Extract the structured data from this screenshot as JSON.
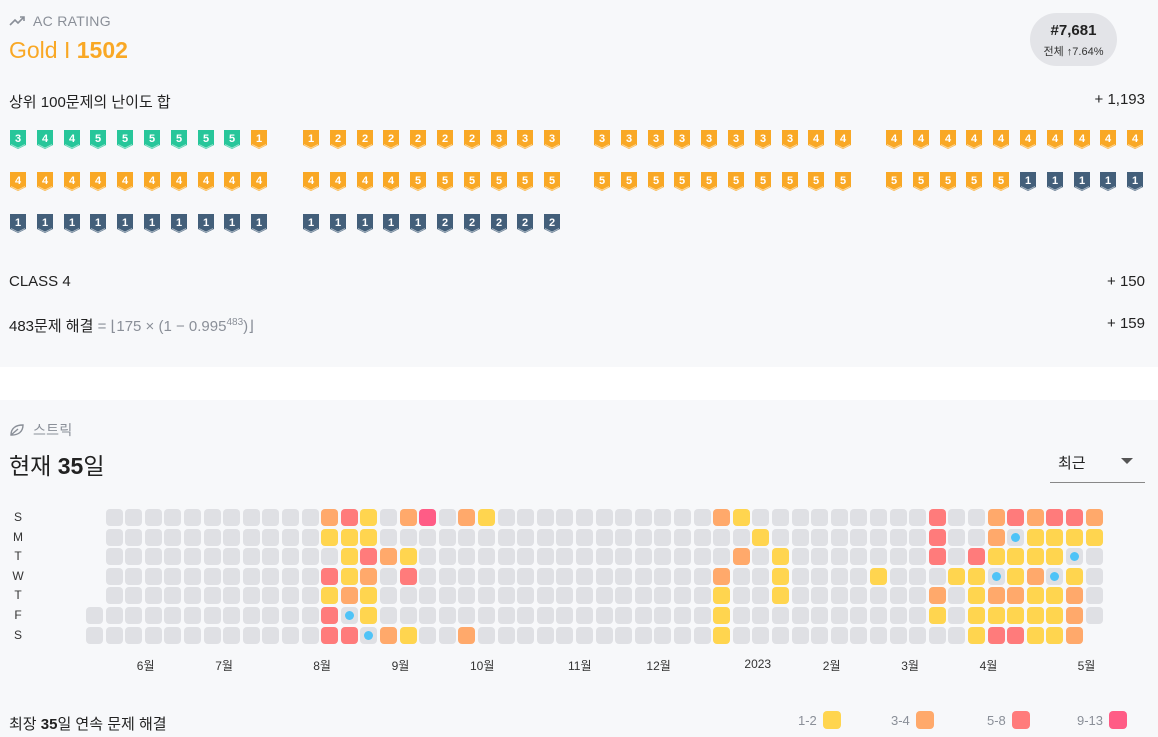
{
  "ac_rating": {
    "header": "AC RATING",
    "tier_label": "Gold I",
    "rating": "1502",
    "rank": "#7,681",
    "rank_sub": "전체 ↑7.64%",
    "top100_label": "상위 100문제의 난이도 합",
    "top100_value": "+ 1,193",
    "class_label": "CLASS 4",
    "class_value": "+ 150",
    "solved_label": "483문제 해결",
    "solved_formula": "= ⌊175 × (1 − 0.995",
    "solved_exp": "483",
    "solved_close": ")⌋",
    "solved_value": "+ 159",
    "colors": {
      "gold": "#f9a825",
      "silver": "#435f7a",
      "emerald": "#27c69a"
    },
    "top100_tiers": [
      [
        "e3",
        "e4",
        "e4",
        "e5",
        "e5",
        "e5",
        "e5",
        "e5",
        "e5",
        "g1"
      ],
      [
        "g1",
        "g2",
        "g2",
        "g2",
        "g2",
        "g2",
        "g2",
        "g3",
        "g3",
        "g3"
      ],
      [
        "g3",
        "g3",
        "g3",
        "g3",
        "g3",
        "g3",
        "g3",
        "g3",
        "g4",
        "g4"
      ],
      [
        "g4",
        "g4",
        "g4",
        "g4",
        "g4",
        "g4",
        "g4",
        "g4",
        "g4",
        "g4"
      ],
      [
        "g4",
        "g4",
        "g4",
        "g4",
        "g4",
        "g4",
        "g4",
        "g4",
        "g4",
        "g4"
      ],
      [
        "g4",
        "g4",
        "g4",
        "g4",
        "g5",
        "g5",
        "g5",
        "g5",
        "g5",
        "g5"
      ],
      [
        "g5",
        "g5",
        "g5",
        "g5",
        "g5",
        "g5",
        "g5",
        "g5",
        "g5",
        "g5"
      ],
      [
        "g5",
        "g5",
        "g5",
        "g5",
        "g5",
        "s1",
        "s1",
        "s1",
        "s1",
        "s1"
      ],
      [
        "s1",
        "s1",
        "s1",
        "s1",
        "s1",
        "s1",
        "s1",
        "s1",
        "s1",
        "s1"
      ],
      [
        "s1",
        "s1",
        "s1",
        "s1",
        "s1",
        "s2",
        "s2",
        "s2",
        "s2",
        "s2"
      ]
    ]
  },
  "streak": {
    "header": "스트릭",
    "current_prefix": "현재 ",
    "current_value": "35",
    "current_suffix": "일",
    "dropdown_value": "최근",
    "days": [
      "S",
      "M",
      "T",
      "W",
      "T",
      "F",
      "S"
    ],
    "months": [
      {
        "label": "6월",
        "col": 3
      },
      {
        "label": "7월",
        "col": 7
      },
      {
        "label": "8월",
        "col": 12
      },
      {
        "label": "9월",
        "col": 16
      },
      {
        "label": "10월",
        "col": 20
      },
      {
        "label": "11월",
        "col": 25
      },
      {
        "label": "12월",
        "col": 29
      },
      {
        "label": "2023",
        "col": 34
      },
      {
        "label": "2월",
        "col": 38
      },
      {
        "label": "3월",
        "col": 42
      },
      {
        "label": "4월",
        "col": 46
      },
      {
        "label": "5월",
        "col": 51
      }
    ],
    "grid_note": "0 empty, 1 yellow(1-2), 2 orange(3-4), 3 salmon(5-8), 4 pink(9-13), 5 freeze dot, -1 none",
    "grid": [
      [
        -1,
        0,
        0,
        0,
        0,
        0,
        0,
        0,
        0,
        0,
        0,
        0,
        2,
        3,
        1,
        0,
        2,
        4,
        0,
        2,
        1,
        0,
        0,
        0,
        0,
        0,
        0,
        0,
        0,
        0,
        0,
        0,
        2,
        1,
        0,
        0,
        0,
        0,
        0,
        0,
        0,
        0,
        0,
        3,
        0,
        0,
        2,
        3,
        2,
        3,
        3,
        2
      ],
      [
        -1,
        0,
        0,
        0,
        0,
        0,
        0,
        0,
        0,
        0,
        0,
        0,
        1,
        1,
        1,
        0,
        0,
        0,
        0,
        0,
        0,
        0,
        0,
        0,
        0,
        0,
        0,
        0,
        0,
        0,
        0,
        0,
        0,
        0,
        1,
        0,
        0,
        0,
        0,
        0,
        0,
        0,
        0,
        3,
        0,
        0,
        2,
        5,
        1,
        1,
        1,
        1
      ],
      [
        -1,
        0,
        0,
        0,
        0,
        0,
        0,
        0,
        0,
        0,
        0,
        0,
        0,
        1,
        3,
        2,
        1,
        0,
        0,
        0,
        0,
        0,
        0,
        0,
        0,
        0,
        0,
        0,
        0,
        0,
        0,
        0,
        0,
        2,
        0,
        1,
        0,
        0,
        0,
        0,
        0,
        0,
        0,
        3,
        0,
        3,
        1,
        1,
        1,
        1,
        5,
        0
      ],
      [
        -1,
        0,
        0,
        0,
        0,
        0,
        0,
        0,
        0,
        0,
        0,
        0,
        3,
        1,
        2,
        0,
        3,
        0,
        0,
        0,
        0,
        0,
        0,
        0,
        0,
        0,
        0,
        0,
        0,
        0,
        0,
        0,
        2,
        0,
        0,
        1,
        0,
        0,
        0,
        0,
        1,
        0,
        0,
        0,
        1,
        1,
        5,
        1,
        2,
        5,
        1,
        0
      ],
      [
        -1,
        0,
        0,
        0,
        0,
        0,
        0,
        0,
        0,
        0,
        0,
        0,
        1,
        2,
        1,
        0,
        0,
        0,
        0,
        0,
        0,
        0,
        0,
        0,
        0,
        0,
        0,
        0,
        0,
        0,
        0,
        0,
        1,
        0,
        0,
        1,
        0,
        0,
        0,
        0,
        0,
        0,
        0,
        2,
        0,
        1,
        2,
        2,
        1,
        1,
        2,
        0
      ],
      [
        0,
        0,
        0,
        0,
        0,
        0,
        0,
        0,
        0,
        0,
        0,
        0,
        3,
        5,
        1,
        0,
        0,
        0,
        0,
        0,
        0,
        0,
        0,
        0,
        0,
        0,
        0,
        0,
        0,
        0,
        0,
        0,
        1,
        0,
        0,
        0,
        0,
        0,
        0,
        0,
        0,
        0,
        0,
        1,
        0,
        1,
        1,
        1,
        1,
        1,
        2,
        0
      ],
      [
        0,
        0,
        0,
        0,
        0,
        0,
        0,
        0,
        0,
        0,
        0,
        0,
        3,
        3,
        5,
        2,
        1,
        0,
        0,
        2,
        0,
        0,
        0,
        0,
        0,
        0,
        0,
        0,
        0,
        0,
        0,
        0,
        1,
        0,
        0,
        0,
        0,
        0,
        0,
        0,
        0,
        0,
        0,
        0,
        0,
        1,
        3,
        3,
        1,
        1,
        2,
        -1
      ]
    ],
    "longest_prefix": "최장 ",
    "longest_value": "35",
    "longest_suffix": "일 연속 문제 해결",
    "legend": [
      {
        "label": "1-2",
        "color": "#ffd54f"
      },
      {
        "label": "3-4",
        "color": "#ffa96b"
      },
      {
        "label": "5-8",
        "color": "#ff7b7b"
      },
      {
        "label": "9-13",
        "color": "#ff5c86"
      }
    ],
    "colors": {
      "empty": "#dfe0e4",
      "freeze_dot": "#4fc3f7"
    }
  }
}
